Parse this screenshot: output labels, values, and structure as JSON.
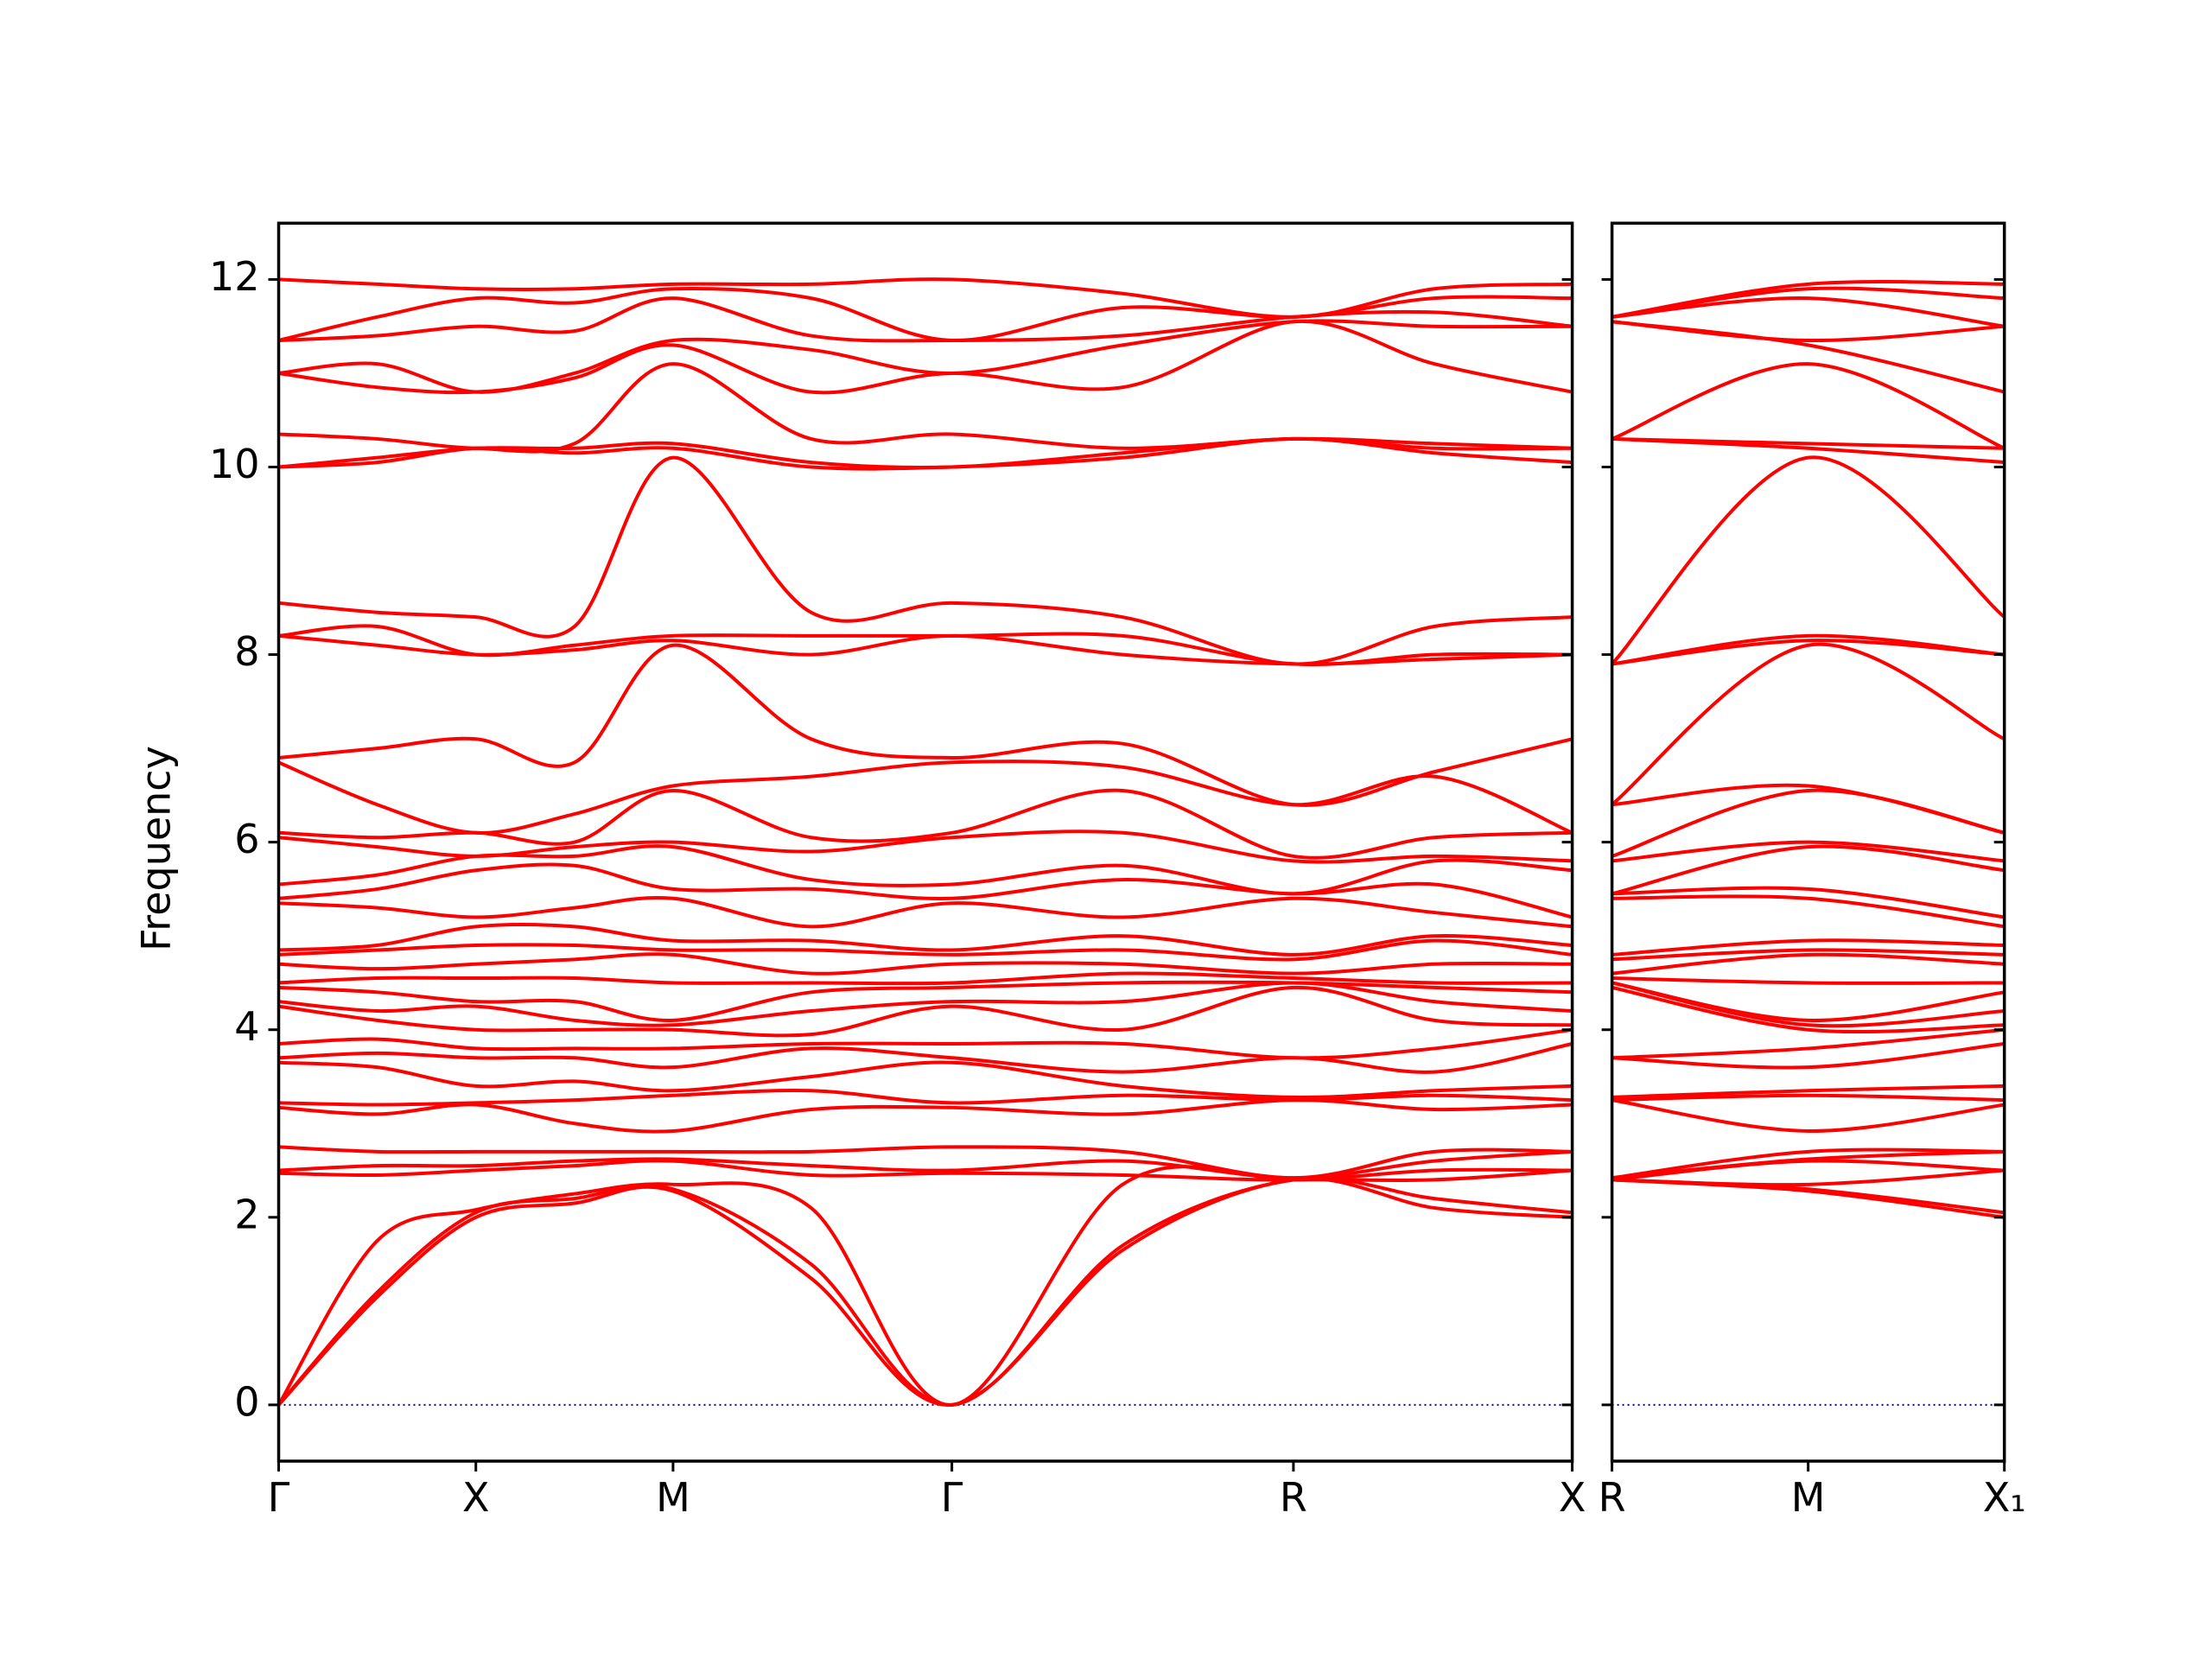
{
  "chart_data": [
    {
      "type": "line",
      "ylabel": "Frequency",
      "color": "red",
      "xlim": [
        0,
        3.28
      ],
      "ylim": [
        -0.6,
        12.6
      ],
      "yticks": [
        0,
        2,
        4,
        6,
        8,
        10,
        12
      ],
      "xticks": [
        {
          "value": 0,
          "label": "Γ"
        },
        {
          "value": 0.5,
          "label": "X"
        },
        {
          "value": 1.0,
          "label": "M"
        },
        {
          "value": 1.707,
          "label": "Γ"
        },
        {
          "value": 2.573,
          "label": "R"
        },
        {
          "value": 3.28,
          "label": "X"
        }
      ],
      "hline": {
        "y": 0,
        "color": "#0000cc",
        "style": "dotted"
      },
      "x": [
        0,
        0.25,
        0.5,
        0.75,
        1.0,
        1.35,
        1.707,
        2.14,
        2.573,
        2.93,
        3.28
      ],
      "bands": [
        [
          0,
          0,
          0,
          2.47,
          2.5,
          2.75,
          3.17,
          3.22,
          3.65,
          3.7,
          3.85,
          4.25,
          4.3,
          4.45,
          4.5,
          4.7,
          4.8,
          4.85,
          5.35,
          5.4,
          5.55,
          6.05,
          6.1,
          6.85,
          6.9,
          8.2,
          8.2,
          8.55,
          10.0,
          10.0,
          10.35,
          11.0,
          11.0,
          11.35,
          11.35,
          12.0
        ],
        [
          1.15,
          1.2,
          1.75,
          2.45,
          2.55,
          2.7,
          3.1,
          3.2,
          3.6,
          3.75,
          3.9,
          4.1,
          4.2,
          4.4,
          4.55,
          4.65,
          4.85,
          4.9,
          5.3,
          5.5,
          5.65,
          5.95,
          6.05,
          6.4,
          7.0,
          8.1,
          8.3,
          8.45,
          10.05,
          10.1,
          10.3,
          10.85,
          11.1,
          11.4,
          11.6,
          11.95
        ],
        [
          2.0,
          2.05,
          2.08,
          2.5,
          2.55,
          2.7,
          3.2,
          3.22,
          3.4,
          3.7,
          3.8,
          4.0,
          4.25,
          4.3,
          4.55,
          4.7,
          4.9,
          5.1,
          5.2,
          5.7,
          5.85,
          5.85,
          6.1,
          6.1,
          7.1,
          8.0,
          8.0,
          8.4,
          10.2,
          10.2,
          10.2,
          10.8,
          10.8,
          11.5,
          11.8,
          11.9
        ],
        [
          2.15,
          2.2,
          2.25,
          2.55,
          2.6,
          2.7,
          3.0,
          3.25,
          3.45,
          3.7,
          3.8,
          4.0,
          4.1,
          4.3,
          4.55,
          4.75,
          4.9,
          5.1,
          5.3,
          5.75,
          5.85,
          5.95,
          6.0,
          6.3,
          6.85,
          8.05,
          8.1,
          8.3,
          10.15,
          10.2,
          10.25,
          10.95,
          11.0,
          11.45,
          11.75,
          11.9
        ],
        [
          2.28,
          2.3,
          2.35,
          2.6,
          2.62,
          2.7,
          2.92,
          3.3,
          3.35,
          3.6,
          3.8,
          4.0,
          4.05,
          4.1,
          4.5,
          4.8,
          4.85,
          4.95,
          5.4,
          5.5,
          5.95,
          6.0,
          6.55,
          6.6,
          8.1,
          8.15,
          8.2,
          10.1,
          10.2,
          10.25,
          11.1,
          11.3,
          11.35,
          11.8,
          11.9,
          11.95
        ],
        [
          1.35,
          1.5,
          2.1,
          2.45,
          2.55,
          2.7,
          3.15,
          3.35,
          3.5,
          3.8,
          3.85,
          3.95,
          4.2,
          4.4,
          4.5,
          4.6,
          4.85,
          4.95,
          5.1,
          5.5,
          5.6,
          5.9,
          6.05,
          6.7,
          7.1,
          8.0,
          8.2,
          8.45,
          10.0,
          10.05,
          10.3,
          10.8,
          11.25,
          11.4,
          11.8,
          11.95
        ],
        [
          0,
          0,
          0,
          2.47,
          2.5,
          2.75,
          3.17,
          3.22,
          3.65,
          3.7,
          3.85,
          4.25,
          4.3,
          4.45,
          4.5,
          4.7,
          4.8,
          4.85,
          5.35,
          5.4,
          5.55,
          6.05,
          6.1,
          6.85,
          6.9,
          8.2,
          8.2,
          8.55,
          10.0,
          10.0,
          10.35,
          11.0,
          11.0,
          11.35,
          11.35,
          12.0
        ],
        [
          1.65,
          1.7,
          2.35,
          2.45,
          2.6,
          2.7,
          3.1,
          3.3,
          3.4,
          3.55,
          3.85,
          4.0,
          4.3,
          4.5,
          4.6,
          4.7,
          4.85,
          5.0,
          5.2,
          5.6,
          5.75,
          6.1,
          6.55,
          6.8,
          7.05,
          8.0,
          8.2,
          8.4,
          10.1,
          10.15,
          10.2,
          10.85,
          11.3,
          11.4,
          11.7,
          11.85
        ],
        [
          2.4,
          2.4,
          2.4,
          2.4,
          2.42,
          2.42,
          3.25,
          3.25,
          3.28,
          3.7,
          3.7,
          4.45,
          4.5,
          4.5,
          4.55,
          4.6,
          4.75,
          4.8,
          5.4,
          5.45,
          5.45,
          5.8,
          5.85,
          6.4,
          6.4,
          7.9,
          7.9,
          7.9,
          10.3,
          10.3,
          10.3,
          11.55,
          11.55,
          11.6,
          11.6,
          11.6
        ],
        [
          2.1,
          2.2,
          2.4,
          2.5,
          2.6,
          2.7,
          3.15,
          3.3,
          3.35,
          3.55,
          3.8,
          4.1,
          4.3,
          4.45,
          4.5,
          4.7,
          4.95,
          5.0,
          5.25,
          5.55,
          5.8,
          5.85,
          6.05,
          6.7,
          6.75,
          7.95,
          8.0,
          8.3,
          10.15,
          10.2,
          10.25,
          11.1,
          11.5,
          11.65,
          11.8,
          11.9
        ],
        [
          2.0,
          2.05,
          2.5,
          2.5,
          2.7,
          2.7,
          3.2,
          3.25,
          3.4,
          3.85,
          4.0,
          4.05,
          4.2,
          4.4,
          4.5,
          4.7,
          4.8,
          4.9,
          5.1,
          5.2,
          5.7,
          5.8,
          6.1,
          6.1,
          7.1,
          8.0,
          8.0,
          8.4,
          10.05,
          10.2,
          10.2,
          10.8,
          11.5,
          11.5,
          11.8,
          11.95
        ]
      ]
    },
    {
      "type": "line",
      "color": "red",
      "xlim": [
        0,
        1.0
      ],
      "ylim": [
        -0.6,
        12.6
      ],
      "yticks": [
        0,
        2,
        4,
        6,
        8,
        10,
        12
      ],
      "xticks": [
        {
          "value": 0,
          "label": "R"
        },
        {
          "value": 0.5,
          "label": "M"
        },
        {
          "value": 1.0,
          "label": "X₁"
        }
      ],
      "hline": {
        "y": 0,
        "color": "#0000cc",
        "style": "dotted"
      },
      "x": [
        0,
        0.5,
        1.0
      ],
      "bands": [
        [
          2.4,
          2.4,
          2.4,
          2.4,
          2.42,
          2.42,
          3.25,
          3.25,
          3.28,
          3.7,
          3.7,
          4.45,
          4.5,
          4.5,
          4.55,
          4.6,
          4.75,
          4.8,
          5.4,
          5.45,
          5.45,
          5.8,
          5.85,
          6.4,
          6.4,
          7.9,
          7.9,
          7.9,
          10.3,
          10.3,
          10.3,
          11.55,
          11.55,
          11.6,
          11.6,
          11.6
        ],
        [
          2.28,
          2.3,
          2.35,
          2.6,
          2.62,
          2.7,
          2.92,
          3.3,
          3.35,
          3.6,
          3.8,
          4.0,
          4.05,
          4.1,
          4.5,
          4.8,
          4.85,
          4.95,
          5.4,
          5.5,
          5.95,
          6.0,
          6.55,
          6.6,
          8.1,
          8.15,
          8.2,
          10.1,
          10.2,
          10.25,
          11.1,
          11.3,
          11.35,
          11.8,
          11.9,
          11.95
        ],
        [
          2.0,
          2.05,
          2.5,
          2.5,
          2.7,
          2.7,
          3.2,
          3.25,
          3.4,
          3.85,
          4.0,
          4.05,
          4.2,
          4.4,
          4.5,
          4.7,
          4.8,
          4.9,
          5.1,
          5.2,
          5.7,
          5.8,
          6.1,
          6.1,
          7.1,
          8.0,
          8.0,
          8.4,
          10.05,
          10.2,
          10.2,
          10.8,
          11.5,
          11.5,
          11.8,
          11.95
        ]
      ]
    }
  ]
}
